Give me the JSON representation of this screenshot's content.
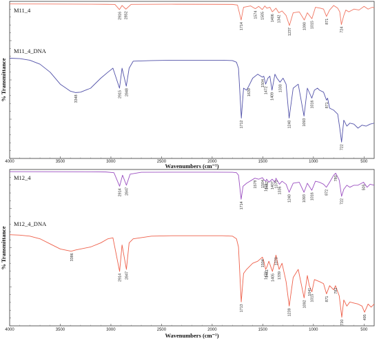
{
  "chart_data": [
    {
      "type": "line",
      "xlabel": "Wavenumbers (cm⁻¹)",
      "ylabel": "% Transmittance",
      "xlim": [
        4000,
        400
      ],
      "x_ticks": [
        "4000",
        "3500",
        "3000",
        "2500",
        "2000",
        "1500",
        "1000",
        "500"
      ],
      "y_ticks": [],
      "series": [
        {
          "name": "M11_4",
          "color": "#f0735f",
          "x": [
            4000,
            3600,
            3200,
            3050,
            2960,
            2916,
            2890,
            2852,
            2800,
            2400,
            2000,
            1800,
            1750,
            1714,
            1690,
            1620,
            1574,
            1540,
            1505,
            1480,
            1460,
            1430,
            1406,
            1370,
            1342,
            1310,
            1270,
            1237,
            1200,
            1140,
            1090,
            1060,
            1015,
            980,
            930,
            900,
            871,
            840,
            800,
            760,
            740,
            724,
            700,
            680,
            650,
            600,
            550,
            500,
            460,
            420,
            400
          ],
          "y": [
            97.5,
            97.2,
            96.8,
            96.6,
            96.3,
            85,
            94,
            86,
            96.5,
            96.8,
            96.6,
            96.4,
            95,
            62,
            90,
            93,
            87,
            92,
            85,
            93,
            88,
            90,
            80,
            88,
            78,
            82,
            72,
            50,
            78,
            80,
            62,
            78,
            65,
            90,
            88,
            86,
            70,
            84,
            94,
            88,
            80,
            52,
            72,
            84,
            80,
            86,
            84,
            92,
            86,
            90,
            89
          ],
          "annotations": [
            "2916",
            "2852",
            "1714",
            "1574",
            "1505",
            "1406",
            "1342",
            "1237",
            "1090",
            "1015",
            "871",
            "724"
          ]
        },
        {
          "name": "M11_4_DNA",
          "color": "#5050a8",
          "x": [
            4000,
            3900,
            3800,
            3700,
            3600,
            3500,
            3400,
            3348,
            3300,
            3200,
            3100,
            3030,
            2980,
            2915,
            2890,
            2848,
            2820,
            2780,
            2600,
            2400,
            2200,
            2000,
            1900,
            1800,
            1760,
            1740,
            1712,
            1690,
            1660,
            1639,
            1600,
            1550,
            1504,
            1490,
            1472,
            1450,
            1430,
            1409,
            1380,
            1360,
            1330,
            1300,
            1270,
            1240,
            1200,
            1150,
            1093,
            1060,
            1016,
            990,
            960,
            940,
            900,
            871,
            860,
            840,
            800,
            760,
            740,
            722,
            700,
            670,
            640,
            600,
            560,
            520,
            480,
            440,
            400
          ],
          "y": [
            90,
            89.6,
            88,
            84,
            76,
            64,
            57,
            55.6,
            56,
            60,
            70,
            76,
            80,
            60,
            80,
            62,
            80,
            87,
            87.6,
            88,
            88,
            88,
            88,
            87.6,
            86,
            80,
            30,
            60,
            58,
            62,
            70,
            74,
            71,
            72,
            64,
            70,
            72,
            58,
            74,
            70,
            66,
            70,
            64,
            30,
            60,
            64,
            32,
            60,
            50,
            58,
            60,
            58,
            56,
            48,
            50,
            40,
            38,
            34,
            20,
            6,
            28,
            22,
            25,
            24,
            20,
            23,
            22,
            24,
            25
          ]
        },
        {
          "name": "",
          "annotations": [
            "3348",
            "2915",
            "2848",
            "1712",
            "1639",
            "1504",
            "1472",
            "1409",
            "1330",
            "1240",
            "1093",
            "1016",
            "871",
            "722"
          ]
        }
      ]
    },
    {
      "type": "line",
      "xlabel": "Wavenumbers (cm⁻¹)",
      "ylabel": "% Transmittance",
      "xlim": [
        4000,
        400
      ],
      "x_ticks": [
        "4000",
        "3500",
        "3000",
        "2500",
        "2000",
        "1500",
        "1000",
        "500"
      ],
      "y_ticks": [],
      "series": [
        {
          "name": "M12_4",
          "color": "#9a4ec0",
          "x": [
            4000,
            3600,
            3200,
            3050,
            2970,
            2914,
            2885,
            2847,
            2810,
            2700,
            2400,
            2000,
            1800,
            1760,
            1740,
            1714,
            1695,
            1660,
            1578,
            1540,
            1504,
            1485,
            1471,
            1462,
            1440,
            1407,
            1380,
            1370,
            1336,
            1310,
            1270,
            1240,
            1200,
            1140,
            1093,
            1060,
            1016,
            980,
            940,
            900,
            872,
            840,
            800,
            780,
            760,
            745,
            722,
            700,
            670,
            640,
            600,
            560,
            505,
            470,
            440,
            400
          ],
          "y": [
            97,
            96.8,
            96.6,
            96.4,
            95,
            68,
            90,
            70,
            92,
            95.8,
            96,
            96,
            95.8,
            95,
            90,
            42,
            68,
            74,
            84,
            82,
            85,
            80,
            78,
            82,
            76,
            82,
            76,
            84,
            72,
            78,
            72,
            56,
            74,
            76,
            56,
            74,
            60,
            78,
            76,
            72,
            66,
            76,
            90,
            94,
            86,
            80,
            48,
            62,
            70,
            66,
            70,
            70,
            76,
            66,
            72,
            70
          ],
          "annotations": [
            "2914",
            "2847",
            "1714",
            "1578",
            "1504",
            "1471",
            "1462",
            "1407",
            "1370",
            "1336",
            "1240",
            "1093",
            "1016",
            "872",
            "780",
            "722",
            "505"
          ]
        },
        {
          "name": "M12_4_DNA",
          "color": "#ee5e48",
          "x": [
            4000,
            3900,
            3800,
            3700,
            3600,
            3500,
            3400,
            3386,
            3350,
            3200,
            3100,
            3030,
            2980,
            2914,
            2890,
            2847,
            2820,
            2780,
            2600,
            2400,
            2200,
            2000,
            1900,
            1800,
            1760,
            1740,
            1713,
            1690,
            1660,
            1600,
            1550,
            1504,
            1490,
            1472,
            1461,
            1440,
            1405,
            1380,
            1370,
            1339,
            1310,
            1270,
            1239,
            1200,
            1150,
            1092,
            1060,
            1041,
            1015,
            990,
            940,
            900,
            871,
            840,
            800,
            782,
            760,
            745,
            720,
            700,
            670,
            640,
            600,
            560,
            520,
            495,
            460,
            430,
            400
          ],
          "y": [
            86,
            85.6,
            84.6,
            82,
            77,
            72,
            70,
            70,
            71,
            74,
            78,
            82,
            83,
            50,
            76,
            52,
            78,
            82,
            84.6,
            85,
            85,
            85,
            85,
            84.6,
            82,
            74,
            20,
            48,
            52,
            58,
            60,
            64,
            60,
            52,
            54,
            60,
            50,
            60,
            66,
            52,
            58,
            40,
            16,
            44,
            52,
            24,
            46,
            36,
            30,
            42,
            40,
            38,
            28,
            36,
            32,
            36,
            30,
            26,
            5,
            22,
            16,
            20,
            19,
            18,
            16,
            10,
            18,
            15,
            18
          ],
          "annotations": [
            "3386",
            "2914",
            "2847",
            "1713",
            "1504",
            "1472",
            "1461",
            "1405",
            "1370",
            "1339",
            "1239",
            "1092",
            "1041",
            "1015",
            "871",
            "782",
            "720",
            "495"
          ]
        }
      ]
    }
  ]
}
